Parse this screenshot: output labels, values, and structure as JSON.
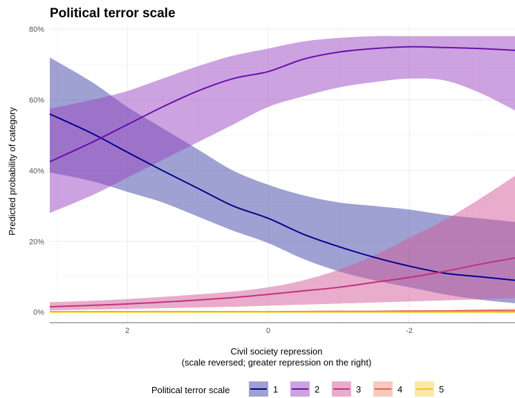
{
  "chart_data": {
    "type": "line",
    "title": "Political terror scale",
    "xlabel_line1": "Civil society repression",
    "xlabel_line2": "(scale reversed; greater repression on the right)",
    "ylabel": "Predicted probability of category",
    "x_reversed": true,
    "xlim": [
      3.1,
      -3.5
    ],
    "ylim": [
      -0.03,
      0.81
    ],
    "x_ticks": [
      2,
      0,
      -2
    ],
    "x_tick_labels": [
      "2",
      "0",
      "-2"
    ],
    "y_ticks": [
      0,
      0.2,
      0.4,
      0.6,
      0.8
    ],
    "y_tick_labels": [
      "0%",
      "20%",
      "40%",
      "60%",
      "80%"
    ],
    "grid": true,
    "legend": {
      "title": "Political terror scale",
      "position": "bottom",
      "labels": [
        "1",
        "2",
        "3",
        "4",
        "5"
      ]
    },
    "x": [
      3.1,
      2.5,
      2.0,
      1.5,
      1.0,
      0.5,
      0.0,
      -0.5,
      -1.0,
      -1.5,
      -2.0,
      -2.5,
      -3.0,
      -3.5
    ],
    "series": [
      {
        "name": "1",
        "color": "#00008b",
        "fill": "#3f43a5",
        "y": [
          0.56,
          0.505,
          0.452,
          0.4,
          0.35,
          0.3,
          0.265,
          0.22,
          0.185,
          0.155,
          0.13,
          0.11,
          0.1,
          0.09
        ],
        "lower": [
          0.395,
          0.37,
          0.34,
          0.31,
          0.27,
          0.23,
          0.195,
          0.15,
          0.115,
          0.09,
          0.07,
          0.05,
          0.035,
          0.025
        ],
        "upper": [
          0.72,
          0.65,
          0.58,
          0.52,
          0.46,
          0.4,
          0.36,
          0.33,
          0.31,
          0.3,
          0.29,
          0.275,
          0.265,
          0.255
        ]
      },
      {
        "name": "2",
        "color": "#6a0dad",
        "fill": "#9b45c2",
        "y": [
          0.425,
          0.48,
          0.53,
          0.58,
          0.625,
          0.66,
          0.68,
          0.715,
          0.735,
          0.745,
          0.75,
          0.748,
          0.745,
          0.74
        ],
        "lower": [
          0.28,
          0.33,
          0.38,
          0.43,
          0.48,
          0.53,
          0.58,
          0.61,
          0.635,
          0.65,
          0.66,
          0.655,
          0.62,
          0.57
        ],
        "upper": [
          0.575,
          0.6,
          0.625,
          0.66,
          0.695,
          0.725,
          0.745,
          0.765,
          0.775,
          0.78,
          0.78,
          0.78,
          0.78,
          0.78
        ]
      },
      {
        "name": "3",
        "color": "#c2307a",
        "fill": "#d45a9a",
        "y": [
          0.015,
          0.019,
          0.023,
          0.028,
          0.034,
          0.041,
          0.05,
          0.06,
          0.07,
          0.084,
          0.098,
          0.115,
          0.135,
          0.153
        ],
        "lower": [
          0.005,
          0.007,
          0.009,
          0.011,
          0.013,
          0.015,
          0.018,
          0.021,
          0.024,
          0.027,
          0.03,
          0.033,
          0.036,
          0.04
        ],
        "upper": [
          0.028,
          0.032,
          0.037,
          0.043,
          0.05,
          0.058,
          0.07,
          0.09,
          0.12,
          0.16,
          0.21,
          0.26,
          0.32,
          0.385
        ]
      },
      {
        "name": "4",
        "color": "#e8604c",
        "fill": "#f2967a",
        "y": [
          0.001,
          0.001,
          0.001,
          0.001,
          0.001,
          0.001,
          0.001,
          0.0015,
          0.002,
          0.002,
          0.003,
          0.003,
          0.004,
          0.004
        ],
        "lower": [
          0.0,
          0.0,
          0.0,
          0.0,
          0.0,
          0.0,
          0.0,
          0.0,
          0.0005,
          0.001,
          0.001,
          0.001,
          0.001,
          0.001
        ],
        "upper": [
          0.002,
          0.002,
          0.002,
          0.002,
          0.002,
          0.002,
          0.002,
          0.003,
          0.003,
          0.004,
          0.005,
          0.006,
          0.008,
          0.01
        ]
      },
      {
        "name": "5",
        "color": "#f5c518",
        "fill": "#f7d050",
        "y": [
          0.0,
          0.0,
          0.0,
          0.0,
          0.0,
          0.0,
          0.0,
          0.0,
          0.0,
          0.0,
          0.0,
          0.0,
          0.0,
          0.0
        ],
        "lower": [
          0.0,
          0.0,
          0.0,
          0.0,
          0.0,
          0.0,
          0.0,
          0.0,
          0.0,
          0.0,
          0.0,
          0.0,
          0.0,
          0.0
        ],
        "upper": [
          0.001,
          0.001,
          0.001,
          0.001,
          0.001,
          0.001,
          0.001,
          0.001,
          0.001,
          0.001,
          0.001,
          0.001,
          0.001,
          0.002
        ]
      }
    ]
  }
}
